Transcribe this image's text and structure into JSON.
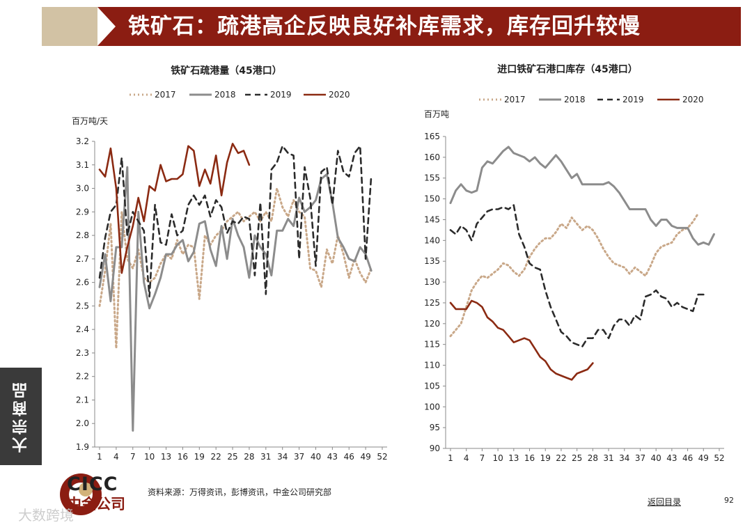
{
  "header": {
    "title": "铁矿石：疏港高企反映良好补库需求，库存回升较慢"
  },
  "side_tab": {
    "label": "大宗商品"
  },
  "footer": {
    "source": "资料来源：万得资讯，彭博资讯，中金公司研究部",
    "back_link": "返回目录",
    "page_number": "92"
  },
  "logo": {
    "en": "CICC",
    "cn": "中金公司"
  },
  "watermark": {
    "text": "大数跨境"
  },
  "colors": {
    "header_bg": "#8b1d12",
    "header_tab": "#d2c2a4",
    "side_tab": "#3a3a3a",
    "s2017": "#c9a889",
    "s2018": "#8c8c8c",
    "s2019": "#2b2b2b",
    "s2020": "#8b2a12"
  },
  "chart_data": [
    {
      "type": "line",
      "title": "铁矿石疏港量（45港口）",
      "ylabel": "百万吨/天",
      "ylim": [
        1.9,
        3.2
      ],
      "yticks": [
        "1.9",
        "2.0",
        "2.1",
        "2.2",
        "2.3",
        "2.4",
        "2.5",
        "2.6",
        "2.7",
        "2.8",
        "2.9",
        "3.0",
        "3.1",
        "3.2"
      ],
      "xlim": [
        1,
        52
      ],
      "xticks": [
        "1",
        "4",
        "7",
        "10",
        "13",
        "16",
        "19",
        "22",
        "25",
        "28",
        "31",
        "34",
        "37",
        "40",
        "43",
        "46",
        "49",
        "52"
      ],
      "legend": [
        "2017",
        "2018",
        "2019",
        "2020"
      ],
      "series": [
        {
          "name": "2017",
          "values": [
            2.5,
            2.65,
            2.85,
            2.32,
            2.9,
            2.7,
            2.66,
            2.74,
            2.62,
            2.6,
            2.62,
            2.68,
            2.72,
            2.7,
            2.78,
            2.72,
            2.76,
            2.75,
            2.53,
            2.8,
            2.76,
            2.8,
            2.82,
            2.86,
            2.88,
            2.9,
            2.86,
            2.88,
            2.9,
            2.86,
            2.9,
            2.86,
            3.0,
            2.92,
            2.88,
            2.95,
            2.9,
            2.88,
            2.66,
            2.65,
            2.58,
            2.74,
            2.68,
            2.8,
            2.72,
            2.62,
            2.7,
            2.64,
            2.6,
            2.66
          ]
        },
        {
          "name": "2018",
          "values": [
            2.58,
            2.72,
            2.52,
            2.75,
            2.75,
            3.09,
            1.97,
            2.9,
            2.6,
            2.49,
            2.55,
            2.62,
            2.72,
            2.72,
            2.76,
            2.78,
            2.69,
            2.73,
            2.85,
            2.86,
            2.74,
            2.67,
            2.84,
            2.7,
            2.87,
            2.8,
            2.75,
            2.62,
            2.8,
            2.75,
            2.72,
            2.63,
            2.82,
            2.82,
            2.87,
            2.84,
            2.96,
            2.9,
            2.92,
            2.95,
            3.04,
            3.06,
            2.94,
            2.79,
            2.75,
            2.7,
            2.69,
            2.75,
            2.72,
            2.65
          ]
        },
        {
          "name": "2019",
          "values": [
            2.62,
            2.79,
            2.9,
            2.93,
            3.13,
            2.8,
            2.9,
            2.86,
            2.82,
            2.54,
            2.93,
            2.77,
            2.76,
            2.89,
            2.8,
            2.82,
            2.93,
            2.97,
            2.93,
            2.97,
            2.88,
            2.95,
            2.92,
            2.81,
            2.86,
            2.85,
            2.88,
            2.87,
            2.63,
            2.94,
            2.55,
            3.08,
            3.11,
            3.18,
            3.15,
            3.14,
            2.7,
            3.09,
            2.96,
            2.67,
            3.07,
            3.09,
            2.93,
            3.16,
            3.07,
            3.05,
            3.15,
            3.18,
            2.7,
            3.05
          ]
        },
        {
          "name": "2020",
          "values": [
            3.08,
            3.05,
            3.17,
            3.0,
            2.64,
            2.75,
            2.84,
            2.96,
            2.86,
            3.01,
            2.99,
            3.1,
            3.03,
            3.04,
            3.04,
            3.06,
            3.18,
            3.16,
            3.01,
            3.08,
            3.02,
            3.14,
            2.97,
            3.11,
            3.19,
            3.15,
            3.16,
            3.1
          ]
        }
      ]
    },
    {
      "type": "line",
      "title": "进口铁矿石港口库存（45港口）",
      "ylabel": "百万吨",
      "ylim": [
        90,
        165
      ],
      "yticks": [
        "90",
        "95",
        "100",
        "105",
        "110",
        "115",
        "120",
        "125",
        "130",
        "135",
        "140",
        "145",
        "150",
        "155",
        "160",
        "165"
      ],
      "xlim": [
        1,
        52
      ],
      "xticks": [
        "1",
        "4",
        "7",
        "10",
        "13",
        "16",
        "19",
        "22",
        "25",
        "28",
        "31",
        "34",
        "37",
        "40",
        "43",
        "46",
        "49",
        "52"
      ],
      "legend": [
        "2017",
        "2018",
        "2019",
        "2020"
      ],
      "series": [
        {
          "name": "2017",
          "values": [
            117,
            118.5,
            120,
            124,
            128,
            130,
            131.5,
            131,
            132,
            133,
            134.5,
            134,
            132.5,
            131.5,
            133,
            136,
            138,
            139.5,
            140.5,
            140.5,
            142,
            144,
            143,
            145.5,
            144,
            142.5,
            143.5,
            142.5,
            140.5,
            138,
            136,
            134.5,
            134,
            133.5,
            132,
            133.5,
            132.5,
            131.5,
            134,
            137,
            138.5,
            139,
            139.5,
            141.5,
            142.5,
            143,
            144.5,
            146.5
          ]
        },
        {
          "name": "2018",
          "values": [
            149,
            152,
            153.5,
            152,
            151.5,
            152,
            157.5,
            159,
            158.5,
            160,
            161.5,
            162.5,
            161,
            160.5,
            160,
            159,
            160,
            158.5,
            157.5,
            159,
            160.5,
            159,
            157,
            155,
            156,
            153.5,
            153.5,
            153.5,
            153.5,
            153.5,
            154,
            153,
            151.5,
            149.5,
            147.5,
            147.5,
            147.5,
            147.5,
            145,
            143.5,
            145,
            145,
            143.5,
            143,
            143,
            143,
            140.5,
            139,
            139.5,
            139,
            141.5
          ]
        },
        {
          "name": "2019",
          "values": [
            142.5,
            141.5,
            143.5,
            142.5,
            140,
            144,
            145.5,
            147,
            147.5,
            147.5,
            148,
            147.5,
            148.5,
            141.5,
            138.5,
            134.5,
            133.5,
            133,
            128,
            124,
            121,
            118,
            117,
            115.5,
            115,
            114.5,
            116.5,
            116.5,
            118.5,
            118.5,
            116.5,
            119.5,
            121,
            121,
            119.5,
            122,
            121,
            126.5,
            127,
            128,
            126.5,
            126,
            124,
            125,
            124,
            123.5,
            123,
            127,
            127
          ]
        },
        {
          "name": "2020",
          "values": [
            125,
            123.5,
            123.5,
            123.5,
            125.5,
            125,
            124,
            121.5,
            120.5,
            119,
            118.5,
            117,
            115.5,
            116,
            116.5,
            116,
            114,
            112,
            111,
            109,
            108,
            107.5,
            107,
            106.5,
            108,
            108.5,
            109,
            110.5
          ]
        }
      ]
    }
  ]
}
